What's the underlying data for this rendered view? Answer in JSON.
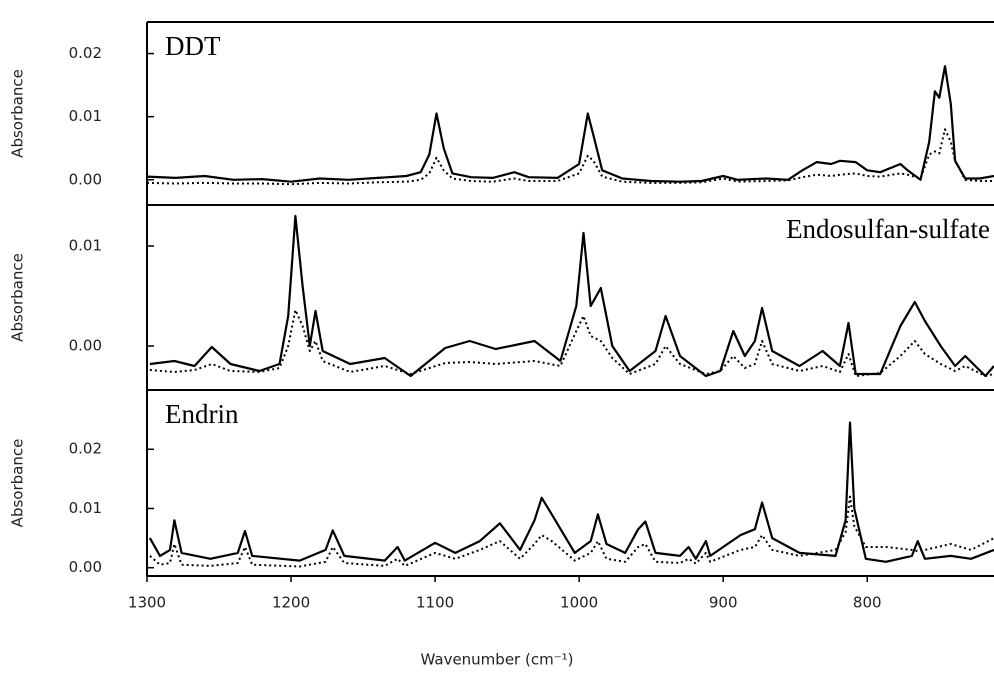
{
  "chart_data": [
    {
      "type": "line",
      "title": "DDT",
      "title_corner": "upper left",
      "ylabel": "Absorbance",
      "xlim": [
        1300,
        712
      ],
      "ylim": [
        -0.004,
        0.025
      ],
      "yticks": [
        {
          "value": 0,
          "label": "0.00"
        },
        {
          "value": 0.01,
          "label": "0.01"
        },
        {
          "value": 0.02,
          "label": "0.02"
        }
      ],
      "x": [
        1300,
        1280,
        1260,
        1240,
        1220,
        1200,
        1180,
        1160,
        1140,
        1120,
        1110,
        1104,
        1099,
        1094,
        1088,
        1075,
        1060,
        1045,
        1035,
        1015,
        1000,
        994,
        990,
        984,
        970,
        950,
        930,
        915,
        900,
        890,
        870,
        855,
        845,
        835,
        825,
        819,
        808,
        800,
        791,
        777,
        772,
        763,
        757,
        753,
        750,
        746,
        742,
        739,
        732,
        722,
        712
      ],
      "series": [
        {
          "color": "#000000",
          "style": "solid",
          "values": [
            0.0005,
            0.0003,
            0.0006,
            0.0,
            0.0001,
            -0.0003,
            0.0002,
            0.0,
            0.0003,
            0.0006,
            0.0012,
            0.004,
            0.0105,
            0.005,
            0.001,
            0.0004,
            0.0003,
            0.0012,
            0.0004,
            0.0003,
            0.0025,
            0.0105,
            0.007,
            0.0015,
            0.0002,
            -0.0002,
            -0.0003,
            -0.0002,
            0.0006,
            0.0,
            0.0002,
            0.0,
            0.0015,
            0.0028,
            0.0025,
            0.003,
            0.0028,
            0.0015,
            0.0012,
            0.0025,
            0.0015,
            0.0,
            0.006,
            0.014,
            0.013,
            0.018,
            0.012,
            0.003,
            0.0002,
            0.0002,
            0.0006
          ]
        },
        {
          "color": "#000000",
          "style": "dotted",
          "values": [
            -0.0005,
            -0.0006,
            -0.0005,
            -0.0006,
            -0.0006,
            -0.0007,
            -0.0005,
            -0.0006,
            -0.0004,
            -0.0003,
            0.0,
            0.001,
            0.0035,
            0.0015,
            0.0002,
            -0.0002,
            -0.0003,
            0.0002,
            -0.0002,
            -0.0002,
            0.001,
            0.0038,
            0.003,
            0.0005,
            -0.0003,
            -0.0005,
            -0.0005,
            -0.0004,
            0.0002,
            -0.0003,
            -0.0002,
            -0.0001,
            0.0004,
            0.0008,
            0.0006,
            0.0008,
            0.001,
            0.0006,
            0.0005,
            0.001,
            0.0008,
            0.0002,
            0.004,
            0.0045,
            0.0042,
            0.008,
            0.006,
            0.003,
            0.0,
            -0.0002,
            -0.0002
          ]
        }
      ]
    },
    {
      "type": "line",
      "title": "Endosulfan-sulfate",
      "title_corner": "upper right",
      "ylabel": "Absorbance",
      "xlim": [
        1300,
        712
      ],
      "ylim": [
        -0.0044,
        0.0141
      ],
      "yticks": [
        {
          "value": 0,
          "label": "0.00"
        },
        {
          "value": 0.01,
          "label": "0.01"
        }
      ],
      "x": [
        1298,
        1281,
        1267,
        1255,
        1242,
        1222,
        1208,
        1202,
        1197,
        1192,
        1187,
        1183,
        1178,
        1159,
        1135,
        1117,
        1093,
        1076,
        1058,
        1031,
        1013,
        1002,
        997,
        992,
        985,
        977,
        965,
        947,
        940,
        930,
        912,
        902,
        893,
        885,
        878,
        873,
        866,
        847,
        831,
        819,
        813,
        808,
        791,
        777,
        767,
        760,
        749,
        739,
        732,
        718,
        712
      ],
      "series": [
        {
          "color": "#000000",
          "style": "solid",
          "values": [
            -0.0018,
            -0.0015,
            -0.002,
            -0.0001,
            -0.0018,
            -0.0025,
            -0.0018,
            0.003,
            0.013,
            0.006,
            0.0,
            0.0035,
            -0.0005,
            -0.0018,
            -0.0012,
            -0.003,
            -0.0002,
            0.0005,
            -0.0003,
            0.0005,
            -0.0015,
            0.004,
            0.0113,
            0.004,
            0.0058,
            0.0,
            -0.0025,
            -0.0005,
            0.003,
            -0.001,
            -0.003,
            -0.0025,
            0.0015,
            -0.001,
            0.0005,
            0.0038,
            -0.0005,
            -0.002,
            -0.0005,
            -0.002,
            0.0023,
            -0.0028,
            -0.0028,
            0.002,
            0.0044,
            0.0025,
            0.0,
            -0.002,
            -0.001,
            -0.003,
            -0.002
          ]
        },
        {
          "color": "#000000",
          "style": "dotted",
          "values": [
            -0.0024,
            -0.0026,
            -0.0024,
            -0.0018,
            -0.0025,
            -0.0026,
            -0.0022,
            0.0,
            0.0036,
            0.002,
            -0.0005,
            0.0005,
            -0.0015,
            -0.0026,
            -0.002,
            -0.0028,
            -0.0017,
            -0.0016,
            -0.0018,
            -0.0015,
            -0.002,
            0.0015,
            0.003,
            0.001,
            0.0005,
            -0.0012,
            -0.0028,
            -0.0018,
            0.0,
            -0.0018,
            -0.0028,
            -0.0025,
            -0.001,
            -0.0022,
            -0.0018,
            0.0005,
            -0.0018,
            -0.0025,
            -0.002,
            -0.0026,
            -0.0008,
            -0.003,
            -0.0027,
            -0.001,
            0.0005,
            -0.0008,
            -0.0018,
            -0.0025,
            -0.002,
            -0.003,
            -0.0028
          ]
        }
      ]
    },
    {
      "type": "line",
      "title": "Endrin",
      "title_corner": "upper left",
      "ylabel": "Absorbance",
      "xlabel": "Wavenumber (cm⁻¹)",
      "xlim": [
        1300,
        712
      ],
      "ylim": [
        -0.0014,
        0.03
      ],
      "xticks": [
        1300,
        1200,
        1100,
        1000,
        900,
        800
      ],
      "yticks": [
        {
          "value": 0,
          "label": "0.00"
        },
        {
          "value": 0.01,
          "label": "0.01"
        },
        {
          "value": 0.02,
          "label": "0.02"
        }
      ],
      "x": [
        1298,
        1291,
        1284,
        1281,
        1276,
        1256,
        1237,
        1232,
        1227,
        1194,
        1176,
        1171,
        1163,
        1135,
        1126,
        1121,
        1100,
        1086,
        1069,
        1055,
        1041,
        1031,
        1026,
        1019,
        1003,
        992,
        987,
        981,
        968,
        959,
        954,
        947,
        930,
        924,
        919,
        912,
        909,
        888,
        878,
        873,
        866,
        847,
        822,
        815,
        812,
        809,
        801,
        787,
        769,
        765,
        760,
        742,
        728,
        712
      ],
      "series": [
        {
          "color": "#000000",
          "style": "solid",
          "values": [
            0.005,
            0.002,
            0.003,
            0.008,
            0.0025,
            0.0015,
            0.0025,
            0.0062,
            0.002,
            0.0012,
            0.003,
            0.0063,
            0.002,
            0.0012,
            0.0035,
            0.0012,
            0.0042,
            0.0025,
            0.0045,
            0.0075,
            0.003,
            0.008,
            0.0118,
            0.009,
            0.0025,
            0.0045,
            0.009,
            0.004,
            0.0025,
            0.0065,
            0.0078,
            0.0025,
            0.002,
            0.0035,
            0.0015,
            0.0045,
            0.002,
            0.0055,
            0.0065,
            0.011,
            0.005,
            0.0025,
            0.002,
            0.008,
            0.0245,
            0.01,
            0.0015,
            0.001,
            0.002,
            0.0045,
            0.0015,
            0.002,
            0.0015,
            0.003
          ]
        },
        {
          "color": "#000000",
          "style": "dotted",
          "values": [
            0.002,
            0.0005,
            0.0008,
            0.004,
            0.0005,
            0.0003,
            0.0008,
            0.0035,
            0.0005,
            0.0002,
            0.001,
            0.0035,
            0.0008,
            0.0003,
            0.0015,
            0.0003,
            0.0025,
            0.0015,
            0.003,
            0.0045,
            0.0015,
            0.004,
            0.0055,
            0.0045,
            0.0012,
            0.0025,
            0.0045,
            0.0015,
            0.001,
            0.0035,
            0.004,
            0.001,
            0.0008,
            0.0015,
            0.0007,
            0.0025,
            0.001,
            0.003,
            0.0035,
            0.0055,
            0.003,
            0.002,
            0.003,
            0.006,
            0.012,
            0.007,
            0.0035,
            0.0035,
            0.003,
            0.0028,
            0.003,
            0.004,
            0.003,
            0.005
          ]
        }
      ]
    }
  ]
}
